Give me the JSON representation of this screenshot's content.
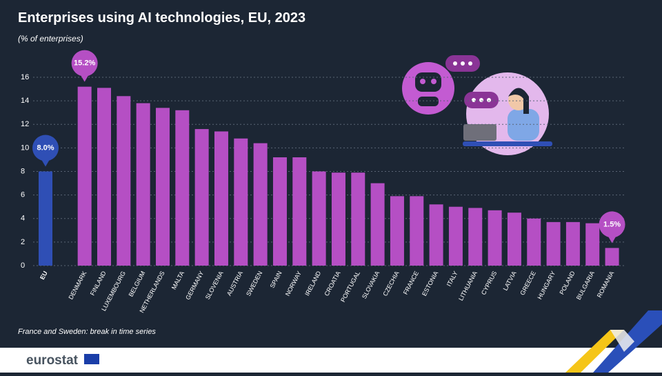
{
  "chart_data": {
    "type": "bar",
    "title": "Enterprises using AI technologies, EU, 2023",
    "subtitle": "(% of enterprises)",
    "note": "France and Sweden: break in time series",
    "source": "eurostat",
    "categories": [
      "EU",
      "DENMARK",
      "FINLAND",
      "LUXEMBOURG",
      "BELGIUM",
      "NETHERLANDS",
      "MALTA",
      "GERMANY",
      "SLOVENIA",
      "AUSTRIA",
      "SWEDEN",
      "SPAIN",
      "NORWAY",
      "IRELAND",
      "CROATIA",
      "PORTUGAL",
      "SLOVAKIA",
      "CZECHIA",
      "FRANCE",
      "ESTONIA",
      "ITALY",
      "LITHUANIA",
      "CYPRUS",
      "LATVIA",
      "GREECE",
      "HUNGARY",
      "POLAND",
      "BULGARIA",
      "ROMANIA"
    ],
    "values": [
      8.0,
      15.2,
      15.1,
      14.4,
      13.8,
      13.4,
      13.2,
      11.6,
      11.4,
      10.8,
      10.4,
      9.2,
      9.2,
      8.0,
      7.9,
      7.9,
      7.0,
      5.9,
      5.9,
      5.2,
      5.0,
      4.9,
      4.7,
      4.5,
      4.0,
      3.7,
      3.7,
      3.6,
      1.5
    ],
    "value_labels": [
      "8.0%",
      "15.2%",
      null,
      null,
      null,
      null,
      null,
      null,
      null,
      null,
      null,
      null,
      null,
      null,
      null,
      null,
      null,
      null,
      null,
      null,
      null,
      null,
      null,
      null,
      null,
      null,
      null,
      null,
      "1.5%"
    ],
    "colors": [
      "#2f4fb5",
      "#b54fc4",
      "#b54fc4",
      "#b54fc4",
      "#b54fc4",
      "#b54fc4",
      "#b54fc4",
      "#b54fc4",
      "#b54fc4",
      "#b54fc4",
      "#b54fc4",
      "#b54fc4",
      "#b54fc4",
      "#b54fc4",
      "#b54fc4",
      "#b54fc4",
      "#b54fc4",
      "#b54fc4",
      "#b54fc4",
      "#b54fc4",
      "#b54fc4",
      "#b54fc4",
      "#b54fc4",
      "#b54fc4",
      "#b54fc4",
      "#b54fc4",
      "#b54fc4",
      "#b54fc4",
      "#b54fc4"
    ],
    "ylim": [
      0,
      16
    ],
    "yticks": [
      0,
      2,
      4,
      6,
      8,
      10,
      12,
      14,
      16
    ],
    "grid": true
  }
}
